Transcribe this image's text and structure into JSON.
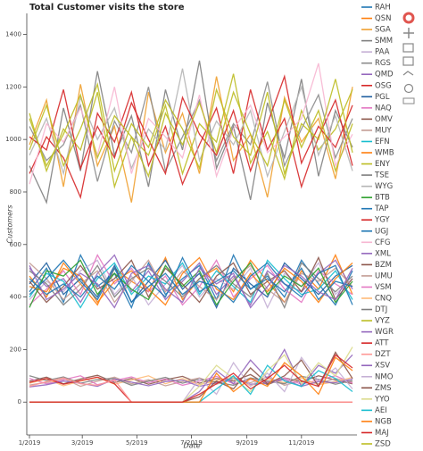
{
  "chart_data": {
    "type": "line",
    "title": "Total Customer visits the store",
    "x_label": "Date",
    "y_label": "Customers",
    "x": [
      0,
      19,
      38,
      57,
      76,
      95,
      114,
      133,
      152,
      171,
      190,
      209,
      228,
      247,
      266,
      285,
      304,
      323,
      342,
      361
    ],
    "xlim": [
      -3,
      366
    ],
    "xticks": [
      {
        "value": 0,
        "label": "1/2019"
      },
      {
        "value": 59,
        "label": "3/2019"
      },
      {
        "value": 120,
        "label": "5/2019"
      },
      {
        "value": 181,
        "label": "7/2019"
      },
      {
        "value": 243,
        "label": "9/2019"
      },
      {
        "value": 304,
        "label": "11/2019"
      }
    ],
    "ylim": [
      -125,
      1480
    ],
    "yticks": [
      0,
      200,
      400,
      600,
      800,
      1000,
      1200,
      1400
    ],
    "grid": false,
    "legend": "right",
    "series": [
      {
        "name": "RAH",
        "color": "#1f77b4",
        "values": [
          420,
          510,
          380,
          560,
          440,
          490,
          360,
          530,
          410,
          470,
          520,
          390,
          560,
          430,
          480,
          400,
          540,
          450,
          370,
          500
        ]
      },
      {
        "name": "QSN",
        "color": "#ff7f0e",
        "values": [
          480,
          400,
          530,
          450,
          370,
          510,
          460,
          420,
          550,
          390,
          470,
          510,
          420,
          540,
          460,
          380,
          500,
          430,
          560,
          410
        ]
      },
      {
        "name": "SGA",
        "color": "#f0a030",
        "values": [
          980,
          1150,
          820,
          1210,
          900,
          1050,
          760,
          1180,
          950,
          1100,
          870,
          1240,
          920,
          1020,
          780,
          1160,
          990,
          1080,
          850,
          1200
        ]
      },
      {
        "name": "SMM",
        "color": "#7f7f7f",
        "values": [
          900,
          760,
          1120,
          880,
          1260,
          940,
          1090,
          820,
          1190,
          960,
          1300,
          890,
          1050,
          770,
          1140,
          930,
          1230,
          860,
          1110,
          970
        ]
      },
      {
        "name": "PAA",
        "color": "#c5b0d5",
        "values": [
          390,
          460,
          420,
          500,
          540,
          410,
          480,
          370,
          450,
          520,
          400,
          470,
          430,
          510,
          360,
          490,
          440,
          530,
          410,
          470
        ]
      },
      {
        "name": "RGS",
        "color": "#8c8c8c",
        "values": [
          1050,
          920,
          980,
          1130,
          840,
          1070,
          950,
          1200,
          880,
          1010,
          1150,
          920,
          1060,
          980,
          1220,
          900,
          1040,
          1170,
          930,
          1080
        ]
      },
      {
        "name": "QMD",
        "color": "#9467bd",
        "values": [
          510,
          440,
          470,
          380,
          490,
          560,
          420,
          500,
          390,
          460,
          530,
          410,
          480,
          370,
          500,
          450,
          420,
          490,
          540,
          430
        ]
      },
      {
        "name": "OSG",
        "color": "#d62728",
        "values": [
          870,
          1010,
          930,
          780,
          1100,
          990,
          1180,
          900,
          1050,
          830,
          980,
          1120,
          870,
          1190,
          960,
          1080,
          820,
          1010,
          1150,
          900
        ]
      },
      {
        "name": "PGL",
        "color": "#1f5fa0",
        "values": [
          450,
          530,
          410,
          470,
          400,
          520,
          380,
          460,
          540,
          430,
          490,
          360,
          510,
          450,
          400,
          530,
          470,
          410,
          480,
          520
        ]
      },
      {
        "name": "NAQ",
        "color": "#e377c2",
        "values": [
          370,
          430,
          500,
          410,
          560,
          450,
          510,
          420,
          480,
          370,
          440,
          540,
          400,
          470,
          520,
          430,
          380,
          500,
          450,
          410
        ]
      },
      {
        "name": "OMV",
        "color": "#8c564b",
        "values": [
          460,
          380,
          440,
          520,
          430,
          470,
          540,
          400,
          510,
          450,
          380,
          480,
          530,
          410,
          460,
          500,
          420,
          550,
          390,
          470
        ]
      },
      {
        "name": "MUY",
        "color": "#c49c94",
        "values": [
          530,
          470,
          390,
          450,
          500,
          380,
          460,
          540,
          420,
          500,
          440,
          390,
          470,
          520,
          430,
          380,
          490,
          460,
          510,
          440
        ]
      },
      {
        "name": "EFN",
        "color": "#17becf",
        "values": [
          400,
          490,
          460,
          360,
          470,
          530,
          410,
          480,
          450,
          530,
          410,
          500,
          440,
          380,
          540,
          470,
          410,
          430,
          500,
          390
        ]
      },
      {
        "name": "WMB",
        "color": "#ff7f0e",
        "values": [
          440,
          420,
          510,
          480,
          380,
          460,
          500,
          430,
          370,
          490,
          550,
          430,
          390,
          490,
          420,
          510,
          460,
          380,
          470,
          530
        ]
      },
      {
        "name": "ENY",
        "color": "#bcbd22",
        "values": [
          1100,
          880,
          1040,
          960,
          1180,
          820,
          1010,
          940,
          1130,
          870,
          1060,
          990,
          1250,
          910,
          1030,
          850,
          1110,
          960,
          1040,
          1190
        ]
      },
      {
        "name": "TSE",
        "color": "#7f7f7f",
        "values": [
          500,
          450,
          370,
          430,
          520,
          400,
          470,
          510,
          460,
          400,
          470,
          520,
          450,
          400,
          490,
          360,
          530,
          470,
          420,
          480
        ]
      },
      {
        "name": "WYG",
        "color": "#b5b5b5",
        "values": [
          940,
          1080,
          870,
          1160,
          1000,
          1120,
          890,
          1040,
          960,
          1270,
          920,
          1070,
          980,
          1110,
          860,
          1030,
          1200,
          940,
          1090,
          880
        ]
      },
      {
        "name": "BTB",
        "color": "#2ca02c",
        "values": [
          360,
          500,
          480,
          540,
          410,
          490,
          430,
          390,
          520,
          440,
          500,
          370,
          460,
          530,
          410,
          480,
          440,
          510,
          380,
          460
        ]
      },
      {
        "name": "TAP",
        "color": "#1f77b4",
        "values": [
          470,
          410,
          450,
          400,
          480,
          430,
          520,
          460,
          400,
          550,
          420,
          460,
          500,
          430,
          470,
          420,
          510,
          390,
          460,
          440
        ]
      },
      {
        "name": "YGY",
        "color": "#d62728",
        "values": [
          1010,
          960,
          1190,
          890,
          1050,
          930,
          1140,
          1000,
          870,
          1160,
          1020,
          940,
          1110,
          880,
          1060,
          1240,
          910,
          1050,
          970,
          1130
        ]
      },
      {
        "name": "UGJ",
        "color": "#1f77b4",
        "values": [
          410,
          470,
          540,
          460,
          390,
          510,
          380,
          440,
          490,
          410,
          460,
          440,
          380,
          480,
          530,
          450,
          400,
          490,
          520,
          370
        ]
      },
      {
        "name": "CFG",
        "color": "#f7b6d2",
        "values": [
          830,
          1060,
          990,
          1120,
          940,
          1200,
          870,
          1080,
          1010,
          930,
          1170,
          860,
          1040,
          1130,
          950,
          1010,
          1080,
          1290,
          900,
          1020
        ]
      },
      {
        "name": "XML",
        "color": "#9467bd",
        "values": [
          520,
          390,
          430,
          490,
          450,
          360,
          490,
          520,
          430,
          380,
          510,
          450,
          490,
          360,
          440,
          520,
          480,
          420,
          390,
          510
        ]
      },
      {
        "name": "BZM",
        "color": "#8c564b",
        "values": [
          80,
          95,
          70,
          88,
          102,
          75,
          90,
          68,
          85,
          98,
          72,
          90,
          80,
          105,
          66,
          92,
          78,
          100,
          84,
          70
        ]
      },
      {
        "name": "UMU",
        "color": "#c49c94",
        "values": [
          65,
          75,
          90,
          60,
          80,
          95,
          70,
          85,
          62,
          78,
          92,
          68,
          88,
          74,
          96,
          64,
          82,
          70,
          90,
          76
        ]
      },
      {
        "name": "VSM",
        "color": "#e377c2",
        "values": [
          90,
          70,
          85,
          100,
          66,
          82,
          96,
          74,
          88,
          64,
          80,
          98,
          70,
          86,
          76,
          92,
          68,
          84,
          100,
          72
        ]
      },
      {
        "name": "CNQ",
        "color": "#ffbb78",
        "values": [
          72,
          88,
          62,
          80,
          94,
          68,
          84,
          100,
          70,
          90,
          66,
          82,
          96,
          62,
          88,
          74,
          92,
          66,
          78,
          94
        ]
      },
      {
        "name": "DTJ",
        "color": "#7f7f7f",
        "values": [
          100,
          82,
          96,
          72,
          86,
          90,
          64,
          80,
          94,
          72,
          88,
          76,
          64,
          92,
          80,
          70,
          98,
          86,
          68,
          82
        ]
      },
      {
        "name": "VYZ",
        "color": "#bcbd22",
        "values": [
          960,
          1130,
          900,
          1040,
          1210,
          880,
          1060,
          970,
          1150,
          1040,
          890,
          1190,
          1010,
          940,
          1180,
          870,
          1060,
          1000,
          1230,
          950
        ]
      },
      {
        "name": "WGR",
        "color": "#9467bd",
        "values": [
          58,
          66,
          80,
          72,
          60,
          88,
          76,
          62,
          78,
          84,
          60,
          74,
          92,
          68,
          72,
          86,
          60,
          78,
          74,
          88
        ]
      },
      {
        "name": "ATT",
        "color": "#d62728",
        "values": [
          75,
          90,
          68,
          82,
          95,
          70,
          0,
          0,
          0,
          0,
          0,
          0,
          0,
          0,
          0,
          0,
          0,
          0,
          0,
          0
        ]
      },
      {
        "name": "DZT",
        "color": "#ff9896",
        "values": [
          60,
          78,
          92,
          70,
          64,
          85,
          0,
          0,
          0,
          0,
          0,
          0,
          0,
          0,
          0,
          0,
          0,
          0,
          0,
          0
        ]
      },
      {
        "name": "XSV",
        "color": "#9467bd",
        "values": [
          0,
          0,
          0,
          0,
          0,
          0,
          0,
          0,
          0,
          0,
          40,
          120,
          70,
          160,
          90,
          200,
          60,
          140,
          110,
          180
        ]
      },
      {
        "name": "NMO",
        "color": "#c5b0d5",
        "values": [
          0,
          0,
          0,
          0,
          0,
          0,
          0,
          0,
          0,
          0,
          90,
          30,
          150,
          60,
          110,
          40,
          170,
          80,
          130,
          50
        ]
      },
      {
        "name": "ZMS",
        "color": "#8c564b",
        "values": [
          0,
          0,
          0,
          0,
          0,
          0,
          0,
          0,
          0,
          0,
          20,
          80,
          50,
          130,
          70,
          100,
          160,
          60,
          190,
          90
        ]
      },
      {
        "name": "YYO",
        "color": "#dbdb8d",
        "values": [
          0,
          0,
          0,
          0,
          0,
          0,
          0,
          0,
          0,
          0,
          60,
          140,
          90,
          40,
          120,
          180,
          70,
          150,
          100,
          210
        ]
      },
      {
        "name": "AEI",
        "color": "#17becf",
        "values": [
          0,
          0,
          0,
          0,
          0,
          0,
          0,
          0,
          0,
          0,
          0,
          50,
          100,
          30,
          140,
          80,
          60,
          120,
          90,
          40
        ]
      },
      {
        "name": "NGB",
        "color": "#ff7f0e",
        "values": [
          0,
          0,
          0,
          0,
          0,
          0,
          0,
          0,
          0,
          0,
          0,
          110,
          40,
          90,
          60,
          150,
          100,
          30,
          170,
          120
        ]
      },
      {
        "name": "MAJ",
        "color": "#d62728",
        "values": [
          0,
          0,
          0,
          0,
          0,
          0,
          0,
          0,
          0,
          0,
          30,
          70,
          110,
          50,
          90,
          140,
          80,
          60,
          180,
          130
        ]
      },
      {
        "name": "ZSD",
        "color": "#bcbd22",
        "values": [
          1080,
          900,
          1020,
          1170,
          930,
          1090,
          1010,
          860,
          1100,
          980,
          1140,
          950,
          1180,
          1020,
          900,
          1150,
          970,
          1110,
          880,
          1060
        ]
      }
    ]
  }
}
